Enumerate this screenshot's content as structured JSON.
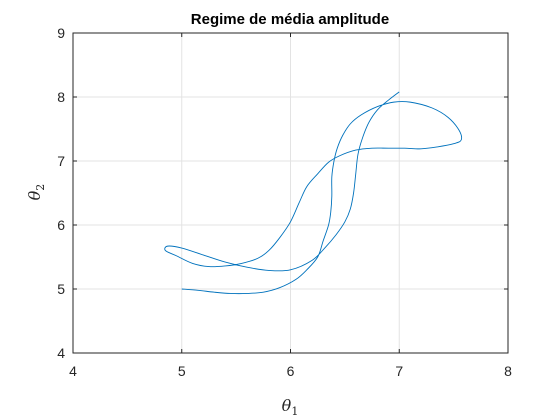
{
  "chart_data": {
    "type": "line",
    "title": "Regime de média amplitude",
    "xlabel": {
      "symbol": "θ",
      "subscript": "1"
    },
    "ylabel": {
      "symbol": "θ",
      "subscript": "2"
    },
    "xlim": [
      4,
      8
    ],
    "ylim": [
      4,
      9
    ],
    "xticks": [
      "4",
      "5",
      "6",
      "7",
      "8"
    ],
    "yticks": [
      "4",
      "5",
      "6",
      "7",
      "8",
      "9"
    ],
    "grid": true,
    "series_color": "#0072BD",
    "series": [
      {
        "x": [
          5.0,
          5.15,
          5.3,
          5.45,
          5.6,
          5.75,
          5.9,
          6.05,
          6.15,
          6.25,
          6.3,
          6.35,
          6.37,
          6.38,
          6.38,
          6.4,
          6.43,
          6.48,
          6.55,
          6.65,
          6.8,
          6.95,
          7.1,
          7.3,
          7.45,
          7.55,
          7.57,
          7.5,
          7.35,
          7.2,
          7.05,
          6.9,
          6.75,
          6.6,
          6.45,
          6.35,
          6.25,
          6.15,
          6.08,
          6.0,
          5.9,
          5.8,
          5.7,
          5.55,
          5.4,
          5.25,
          5.1,
          4.95,
          4.85,
          4.87,
          5.0,
          5.2,
          5.4,
          5.6,
          5.8,
          6.0,
          6.2,
          6.32,
          6.42,
          6.5,
          6.55,
          6.58,
          6.6,
          6.62,
          6.66,
          6.72,
          6.8,
          6.9,
          7.0
        ],
        "y": [
          5.0,
          4.98,
          4.95,
          4.93,
          4.93,
          4.95,
          5.02,
          5.15,
          5.3,
          5.5,
          5.75,
          6.0,
          6.2,
          6.45,
          6.75,
          7.0,
          7.2,
          7.4,
          7.58,
          7.72,
          7.85,
          7.92,
          7.92,
          7.83,
          7.68,
          7.48,
          7.33,
          7.27,
          7.22,
          7.19,
          7.2,
          7.2,
          7.2,
          7.17,
          7.08,
          6.98,
          6.8,
          6.6,
          6.35,
          6.05,
          5.8,
          5.6,
          5.48,
          5.4,
          5.36,
          5.35,
          5.4,
          5.52,
          5.6,
          5.67,
          5.64,
          5.53,
          5.42,
          5.34,
          5.29,
          5.3,
          5.45,
          5.65,
          5.85,
          6.05,
          6.25,
          6.5,
          6.8,
          7.1,
          7.35,
          7.6,
          7.8,
          7.95,
          8.08
        ]
      }
    ]
  }
}
